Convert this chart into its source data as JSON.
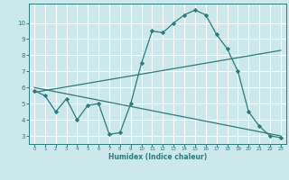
{
  "bg_color": "#cce8eb",
  "line_color": "#2d7a7a",
  "grid_color": "#ffffff",
  "xlabel": "Humidex (Indice chaleur)",
  "xlim": [
    -0.5,
    23.5
  ],
  "ylim": [
    2.5,
    11.2
  ],
  "yticks": [
    3,
    4,
    5,
    6,
    7,
    8,
    9,
    10
  ],
  "xticks": [
    0,
    1,
    2,
    3,
    4,
    5,
    6,
    7,
    8,
    9,
    10,
    11,
    12,
    13,
    14,
    15,
    16,
    17,
    18,
    19,
    20,
    21,
    22,
    23
  ],
  "line1_x": [
    0,
    1,
    2,
    3,
    4,
    5,
    6,
    7,
    8,
    9,
    10,
    11,
    12,
    13,
    14,
    15,
    16,
    17,
    18,
    19,
    20,
    21,
    22,
    23
  ],
  "line1_y": [
    5.8,
    5.5,
    4.5,
    5.3,
    4.0,
    4.9,
    5.0,
    3.1,
    3.2,
    5.0,
    7.5,
    9.5,
    9.4,
    10.0,
    10.5,
    10.8,
    10.5,
    9.3,
    8.4,
    7.0,
    4.5,
    3.6,
    3.0,
    2.9
  ],
  "line2_x": [
    0,
    23
  ],
  "line2_y": [
    5.7,
    8.3
  ],
  "line3_x": [
    0,
    23
  ],
  "line3_y": [
    6.0,
    3.0
  ]
}
